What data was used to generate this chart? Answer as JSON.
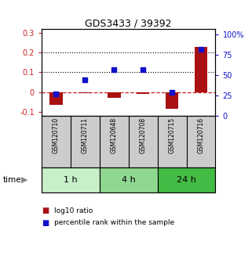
{
  "title": "GDS3433 / 39392",
  "samples": [
    "GSM120710",
    "GSM120711",
    "GSM120648",
    "GSM120708",
    "GSM120715",
    "GSM120716"
  ],
  "log10_ratio": [
    -0.065,
    -0.005,
    -0.03,
    -0.008,
    -0.085,
    0.23
  ],
  "percentile_rank_pct": [
    27,
    44,
    57,
    57,
    29,
    82
  ],
  "time_groups": [
    {
      "label": "1 h",
      "samples": [
        0,
        1
      ],
      "color": "#c8f0c8"
    },
    {
      "label": "4 h",
      "samples": [
        2,
        3
      ],
      "color": "#90d890"
    },
    {
      "label": "24 h",
      "samples": [
        4,
        5
      ],
      "color": "#44bb44"
    }
  ],
  "bar_color": "#aa1111",
  "dot_color": "#1111cc",
  "ylim_left": [
    -0.12,
    0.32
  ],
  "ylim_right": [
    0,
    107
  ],
  "yticks_left": [
    -0.1,
    0.0,
    0.1,
    0.2,
    0.3
  ],
  "yticks_right": [
    0,
    25,
    50,
    75,
    100
  ],
  "ytick_labels_left": [
    "-0.1",
    "0",
    "0.1",
    "0.2",
    "0.3"
  ],
  "ytick_labels_right": [
    "0",
    "25",
    "50",
    "75",
    "100%"
  ],
  "hlines": [
    0.1,
    0.2
  ],
  "zero_line_color": "#cc2222",
  "bg_color": "#ffffff",
  "sample_box_color": "#cccccc",
  "legend_red": "log10 ratio",
  "legend_blue": "percentile rank within the sample"
}
